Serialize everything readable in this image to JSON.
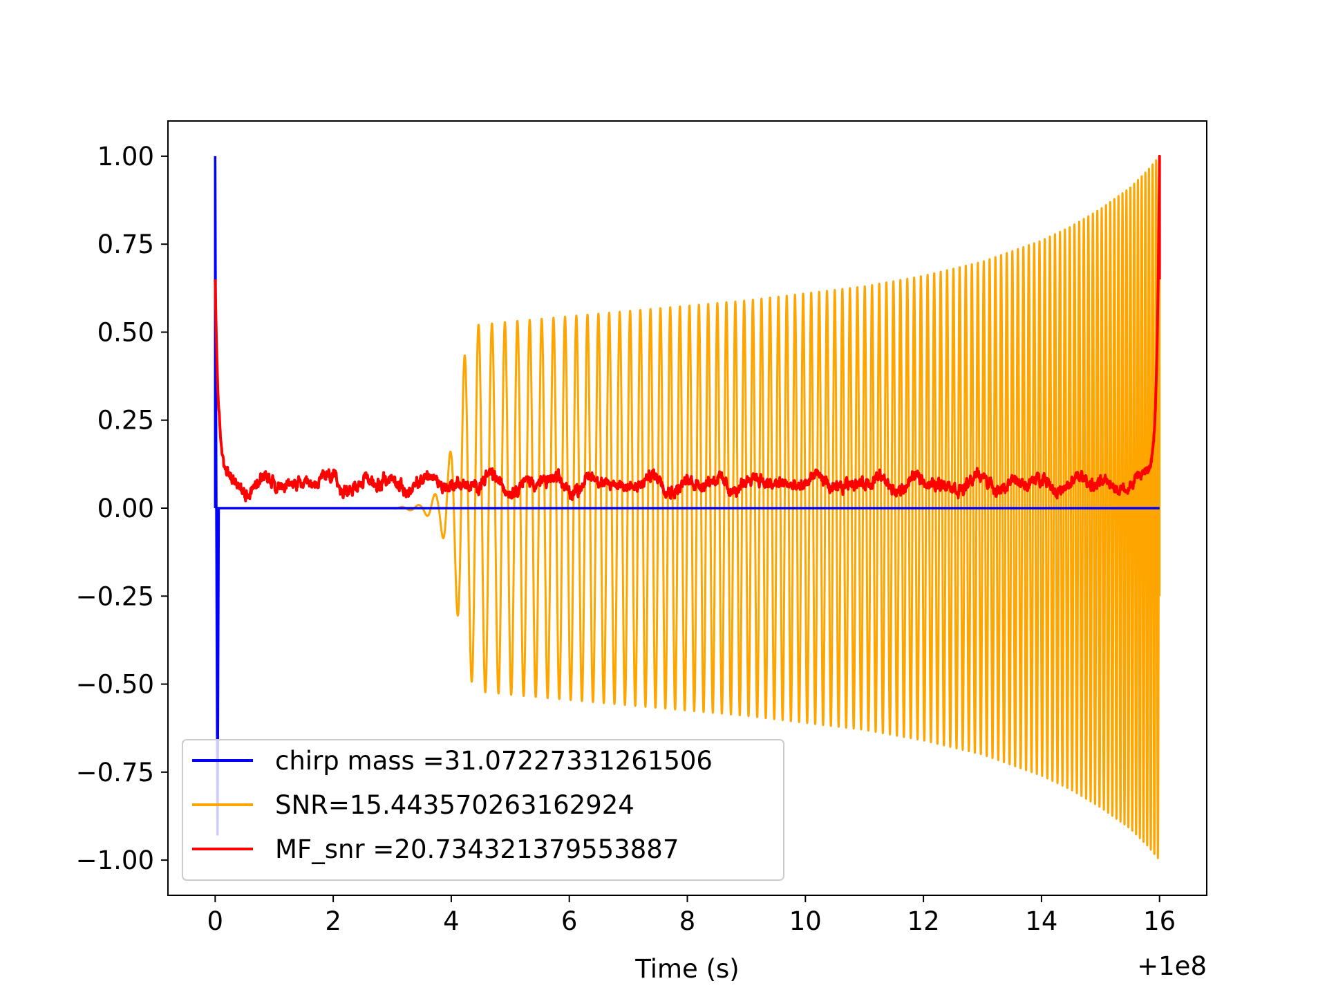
{
  "chart_data": {
    "type": "line",
    "title": "",
    "xlabel": "Time (s)",
    "ylabel": "",
    "x_offset_label": "+1e8",
    "xlim": [
      -0.8,
      16.8
    ],
    "ylim": [
      -1.1,
      1.1
    ],
    "xticks": [
      0,
      2,
      4,
      6,
      8,
      10,
      12,
      14,
      16
    ],
    "xtick_labels": [
      "0",
      "2",
      "4",
      "6",
      "8",
      "10",
      "12",
      "14",
      "16"
    ],
    "yticks": [
      1.0,
      0.75,
      0.5,
      0.25,
      0.0,
      -0.25,
      -0.5,
      -0.75,
      -1.0
    ],
    "ytick_labels": [
      "1.00",
      "0.75",
      "0.50",
      "0.25",
      "0.00",
      "−0.25",
      "−0.50",
      "−0.75",
      "−1.00"
    ],
    "grid": false,
    "legend_position": "lower-left",
    "series": [
      {
        "name": "chirp mass =31.07227331261506",
        "color": "#0000ff",
        "shape": "spike",
        "x": [
          0,
          0.0,
          0.02,
          0.04,
          0.06,
          16
        ],
        "y": [
          0,
          1.0,
          0.0,
          -0.93,
          0.0,
          0.0
        ]
      },
      {
        "name": "SNR=15.443570263162924",
        "color": "#ffa500",
        "shape": "chirp",
        "x_start": 0.0,
        "x_end": 16.0,
        "envelope_x": [
          0,
          3.0,
          3.5,
          3.8,
          4.0,
          4.2,
          4.4,
          5,
          6,
          7,
          8,
          9,
          10,
          11,
          12,
          13,
          14,
          14.5,
          15,
          15.5,
          15.8,
          16.0
        ],
        "envelope_y": [
          0,
          0.0,
          0.01,
          0.05,
          0.17,
          0.42,
          0.52,
          0.53,
          0.545,
          0.56,
          0.575,
          0.59,
          0.61,
          0.63,
          0.66,
          0.7,
          0.76,
          0.8,
          0.85,
          0.91,
          0.96,
          1.0
        ],
        "frequency_x": [
          3.5,
          4,
          5,
          6,
          8,
          10,
          12,
          14,
          15,
          16
        ],
        "frequency_hz": [
          3.5,
          4.0,
          4.7,
          5.2,
          6.2,
          7.3,
          8.8,
          11.2,
          13.5,
          17.0
        ],
        "end_value": -0.25
      },
      {
        "name": "MF_snr =20.734321379553887",
        "color": "#ff0000",
        "shape": "noise",
        "x_start": 0.0,
        "x_end": 16.0,
        "start_value": 0.65,
        "baseline": 0.07,
        "noise_amplitude": 0.05,
        "peak_x": 16.0,
        "peak_value": 1.0
      }
    ]
  }
}
